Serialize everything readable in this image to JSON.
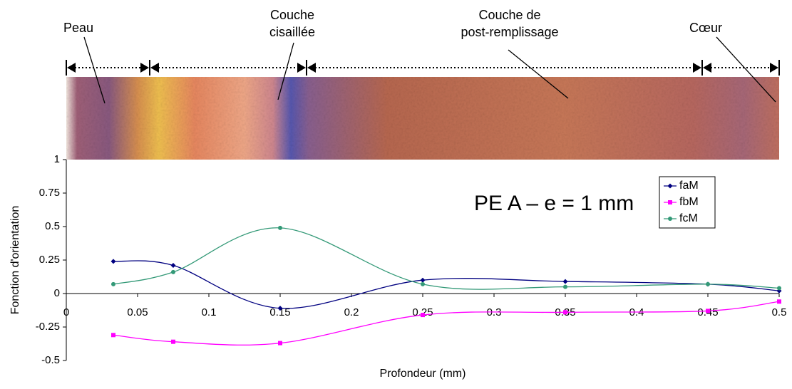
{
  "chart_data": {
    "type": "line",
    "x_label": "Profondeur (mm)",
    "y_label": "Fonction d'orientation",
    "annotation": "PE A – e = 1 mm",
    "zones": [
      {
        "lines": [
          "Peau"
        ]
      },
      {
        "lines": [
          "Couche",
          "cisaillée"
        ]
      },
      {
        "lines": [
          "Couche de",
          "post-remplissage"
        ]
      },
      {
        "lines": [
          "Cœur"
        ]
      }
    ],
    "x": [
      0.033,
      0.075,
      0.15,
      0.25,
      0.35,
      0.45,
      0.5
    ],
    "series": [
      {
        "name": "faM",
        "color": "#000080",
        "marker": "diamond",
        "values": [
          0.24,
          0.21,
          -0.11,
          0.1,
          0.09,
          0.07,
          0.02
        ]
      },
      {
        "name": "fbM",
        "color": "#ff00ff",
        "marker": "square",
        "values": [
          -0.31,
          -0.36,
          -0.37,
          -0.16,
          -0.14,
          -0.13,
          -0.06
        ]
      },
      {
        "name": "fcM",
        "color": "#339977",
        "marker": "circle",
        "values": [
          0.07,
          0.16,
          0.49,
          0.07,
          0.05,
          0.07,
          0.04
        ]
      }
    ],
    "xlim": [
      0,
      0.5
    ],
    "xticks": [
      0,
      0.05,
      0.1,
      0.15,
      0.2,
      0.25,
      0.3,
      0.35,
      0.4,
      0.45,
      0.5
    ],
    "ylim": [
      -0.5,
      1
    ],
    "yticks": [
      1,
      0.75,
      0.5,
      0.25,
      0,
      -0.25,
      -0.5
    ],
    "legend": "upper right"
  }
}
